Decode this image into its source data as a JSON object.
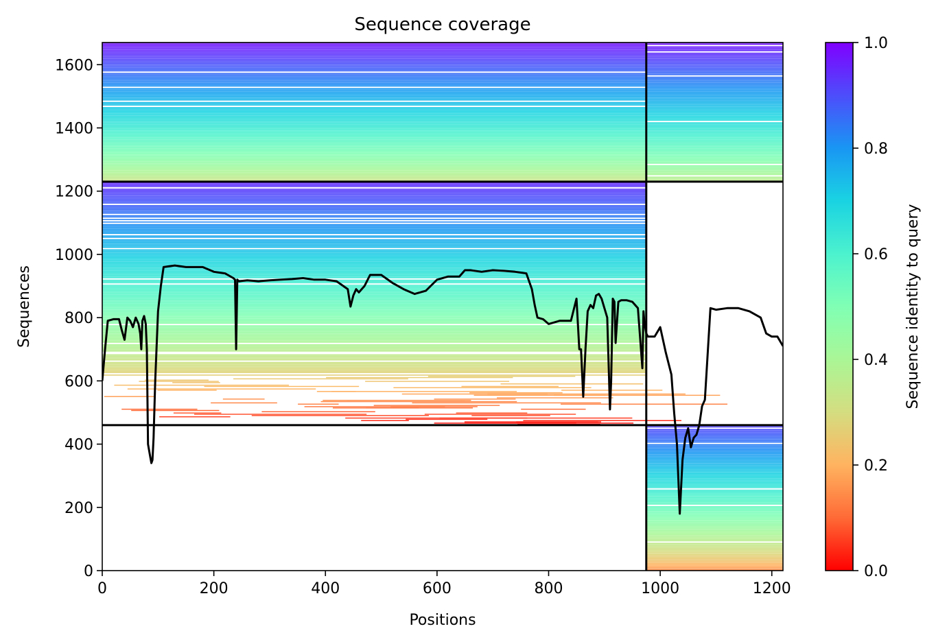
{
  "chart_data": {
    "type": "heatmap",
    "title": "Sequence coverage",
    "xlabel": "Positions",
    "ylabel": "Sequences",
    "colorbar_label": "Sequence identity to query",
    "colormap": "rainbow_r",
    "colormap_stops": [
      {
        "v": 0.0,
        "color": "#ff0000"
      },
      {
        "v": 0.1,
        "color": "#ff6a36"
      },
      {
        "v": 0.2,
        "color": "#ffb360"
      },
      {
        "v": 0.3,
        "color": "#d4dd80"
      },
      {
        "v": 0.4,
        "color": "#aaf696"
      },
      {
        "v": 0.5,
        "color": "#80ffb4"
      },
      {
        "v": 0.6,
        "color": "#4cf2ce"
      },
      {
        "v": 0.7,
        "color": "#1ad3e2"
      },
      {
        "v": 0.8,
        "color": "#1996f3"
      },
      {
        "v": 0.9,
        "color": "#4d4dfb"
      },
      {
        "v": 1.0,
        "color": "#8000ff"
      }
    ],
    "xlim": [
      0,
      1220
    ],
    "ylim": [
      0,
      1670
    ],
    "x_ticks": [
      0,
      200,
      400,
      600,
      800,
      1000,
      1200
    ],
    "y_ticks": [
      0,
      200,
      400,
      600,
      800,
      1000,
      1200,
      1400,
      1600
    ],
    "colorbar_ticks": [
      "0.0",
      "0.2",
      "0.4",
      "0.6",
      "0.8",
      "1.0"
    ],
    "colorbar_tick_values": [
      0.0,
      0.2,
      0.4,
      0.6,
      0.8,
      1.0
    ],
    "grid": false,
    "blocks": [
      {
        "name": "paired",
        "x": [
          0,
          975
        ],
        "y": [
          1230,
          1670
        ],
        "identity_bottom": 0.32,
        "identity_top": 0.98
      },
      {
        "name": "chain-b-paired",
        "x": [
          975,
          1220
        ],
        "y": [
          1230,
          1670
        ],
        "identity_bottom": 0.35,
        "identity_top": 0.98
      },
      {
        "name": "chain-a-unpaired",
        "x": [
          0,
          975
        ],
        "y": [
          460,
          1230
        ],
        "identity_bottom": 0.0,
        "identity_top": 0.95
      },
      {
        "name": "chain-b-unpaired",
        "x": [
          975,
          1220
        ],
        "y": [
          0,
          460
        ],
        "identity_bottom": 0.15,
        "identity_top": 0.92
      }
    ],
    "block_boundaries": {
      "x": 975,
      "y": [
        460,
        1230
      ]
    },
    "coverage_line": {
      "x": [
        0,
        5,
        10,
        20,
        30,
        35,
        40,
        45,
        50,
        55,
        60,
        65,
        68,
        70,
        72,
        75,
        78,
        80,
        82,
        85,
        88,
        90,
        92,
        95,
        100,
        105,
        110,
        130,
        150,
        180,
        200,
        220,
        235,
        238,
        240,
        242,
        245,
        260,
        280,
        300,
        320,
        340,
        360,
        380,
        400,
        420,
        440,
        445,
        450,
        455,
        460,
        470,
        480,
        500,
        520,
        540,
        560,
        580,
        600,
        620,
        640,
        650,
        660,
        680,
        700,
        720,
        740,
        760,
        770,
        775,
        780,
        790,
        800,
        820,
        840,
        850,
        855,
        858,
        862,
        866,
        870,
        875,
        880,
        885,
        890,
        895,
        900,
        905,
        910,
        912,
        915,
        918,
        920,
        925,
        930,
        940,
        950,
        960,
        968,
        970,
        972,
        975,
        978,
        990,
        1000,
        1010,
        1020,
        1025,
        1030,
        1035,
        1040,
        1045,
        1050,
        1055,
        1060,
        1065,
        1070,
        1075,
        1080,
        1090,
        1100,
        1120,
        1140,
        1160,
        1180,
        1190,
        1200,
        1210,
        1220
      ],
      "y": [
        600,
        700,
        790,
        795,
        795,
        760,
        730,
        800,
        790,
        770,
        800,
        780,
        750,
        700,
        790,
        805,
        780,
        700,
        400,
        370,
        340,
        350,
        420,
        600,
        820,
        900,
        960,
        965,
        960,
        960,
        945,
        940,
        925,
        920,
        700,
        920,
        915,
        918,
        915,
        918,
        920,
        922,
        925,
        920,
        920,
        915,
        890,
        835,
        870,
        890,
        880,
        900,
        935,
        935,
        910,
        890,
        875,
        885,
        920,
        930,
        930,
        950,
        950,
        945,
        950,
        948,
        945,
        940,
        890,
        840,
        800,
        795,
        780,
        790,
        790,
        860,
        700,
        700,
        550,
        700,
        820,
        840,
        830,
        870,
        875,
        860,
        830,
        800,
        510,
        600,
        860,
        850,
        720,
        850,
        855,
        855,
        850,
        830,
        640,
        820,
        780,
        750,
        740,
        740,
        770,
        690,
        620,
        500,
        400,
        180,
        350,
        420,
        450,
        390,
        420,
        430,
        460,
        520,
        540,
        830,
        825,
        830,
        830,
        820,
        800,
        750,
        740,
        740,
        710
      ]
    }
  }
}
